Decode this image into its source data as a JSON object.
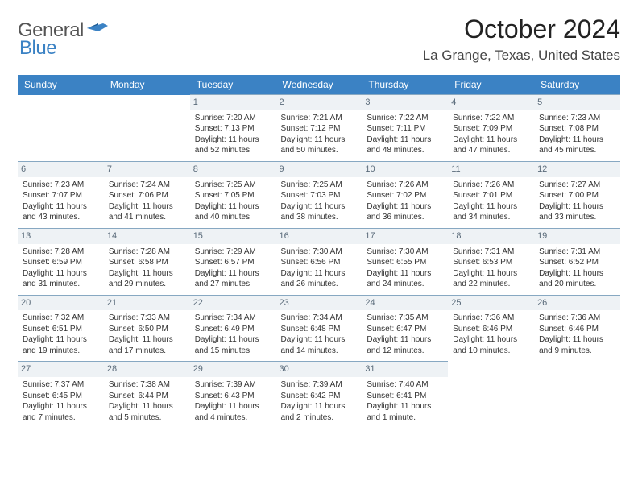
{
  "logo": {
    "general": "General",
    "blue": "Blue"
  },
  "title": "October 2024",
  "location": "La Grange, Texas, United States",
  "colors": {
    "header_bg": "#3b82c4",
    "row_border": "#87a8c2",
    "daynum_bg": "#eef2f5",
    "daynum_fg": "#5a6b7a",
    "logo_blue": "#3b82c4",
    "logo_gray": "#555555",
    "page_bg": "#ffffff"
  },
  "typography": {
    "title_fontsize": 32,
    "location_fontsize": 17,
    "dayheader_fontsize": 12,
    "cell_fontsize": 10,
    "logo_fontsize": 24
  },
  "day_headers": [
    "Sunday",
    "Monday",
    "Tuesday",
    "Wednesday",
    "Thursday",
    "Friday",
    "Saturday"
  ],
  "weeks": [
    [
      null,
      null,
      {
        "n": "1",
        "sr": "Sunrise: 7:20 AM",
        "ss": "Sunset: 7:13 PM",
        "d1": "Daylight: 11 hours",
        "d2": "and 52 minutes."
      },
      {
        "n": "2",
        "sr": "Sunrise: 7:21 AM",
        "ss": "Sunset: 7:12 PM",
        "d1": "Daylight: 11 hours",
        "d2": "and 50 minutes."
      },
      {
        "n": "3",
        "sr": "Sunrise: 7:22 AM",
        "ss": "Sunset: 7:11 PM",
        "d1": "Daylight: 11 hours",
        "d2": "and 48 minutes."
      },
      {
        "n": "4",
        "sr": "Sunrise: 7:22 AM",
        "ss": "Sunset: 7:09 PM",
        "d1": "Daylight: 11 hours",
        "d2": "and 47 minutes."
      },
      {
        "n": "5",
        "sr": "Sunrise: 7:23 AM",
        "ss": "Sunset: 7:08 PM",
        "d1": "Daylight: 11 hours",
        "d2": "and 45 minutes."
      }
    ],
    [
      {
        "n": "6",
        "sr": "Sunrise: 7:23 AM",
        "ss": "Sunset: 7:07 PM",
        "d1": "Daylight: 11 hours",
        "d2": "and 43 minutes."
      },
      {
        "n": "7",
        "sr": "Sunrise: 7:24 AM",
        "ss": "Sunset: 7:06 PM",
        "d1": "Daylight: 11 hours",
        "d2": "and 41 minutes."
      },
      {
        "n": "8",
        "sr": "Sunrise: 7:25 AM",
        "ss": "Sunset: 7:05 PM",
        "d1": "Daylight: 11 hours",
        "d2": "and 40 minutes."
      },
      {
        "n": "9",
        "sr": "Sunrise: 7:25 AM",
        "ss": "Sunset: 7:03 PM",
        "d1": "Daylight: 11 hours",
        "d2": "and 38 minutes."
      },
      {
        "n": "10",
        "sr": "Sunrise: 7:26 AM",
        "ss": "Sunset: 7:02 PM",
        "d1": "Daylight: 11 hours",
        "d2": "and 36 minutes."
      },
      {
        "n": "11",
        "sr": "Sunrise: 7:26 AM",
        "ss": "Sunset: 7:01 PM",
        "d1": "Daylight: 11 hours",
        "d2": "and 34 minutes."
      },
      {
        "n": "12",
        "sr": "Sunrise: 7:27 AM",
        "ss": "Sunset: 7:00 PM",
        "d1": "Daylight: 11 hours",
        "d2": "and 33 minutes."
      }
    ],
    [
      {
        "n": "13",
        "sr": "Sunrise: 7:28 AM",
        "ss": "Sunset: 6:59 PM",
        "d1": "Daylight: 11 hours",
        "d2": "and 31 minutes."
      },
      {
        "n": "14",
        "sr": "Sunrise: 7:28 AM",
        "ss": "Sunset: 6:58 PM",
        "d1": "Daylight: 11 hours",
        "d2": "and 29 minutes."
      },
      {
        "n": "15",
        "sr": "Sunrise: 7:29 AM",
        "ss": "Sunset: 6:57 PM",
        "d1": "Daylight: 11 hours",
        "d2": "and 27 minutes."
      },
      {
        "n": "16",
        "sr": "Sunrise: 7:30 AM",
        "ss": "Sunset: 6:56 PM",
        "d1": "Daylight: 11 hours",
        "d2": "and 26 minutes."
      },
      {
        "n": "17",
        "sr": "Sunrise: 7:30 AM",
        "ss": "Sunset: 6:55 PM",
        "d1": "Daylight: 11 hours",
        "d2": "and 24 minutes."
      },
      {
        "n": "18",
        "sr": "Sunrise: 7:31 AM",
        "ss": "Sunset: 6:53 PM",
        "d1": "Daylight: 11 hours",
        "d2": "and 22 minutes."
      },
      {
        "n": "19",
        "sr": "Sunrise: 7:31 AM",
        "ss": "Sunset: 6:52 PM",
        "d1": "Daylight: 11 hours",
        "d2": "and 20 minutes."
      }
    ],
    [
      {
        "n": "20",
        "sr": "Sunrise: 7:32 AM",
        "ss": "Sunset: 6:51 PM",
        "d1": "Daylight: 11 hours",
        "d2": "and 19 minutes."
      },
      {
        "n": "21",
        "sr": "Sunrise: 7:33 AM",
        "ss": "Sunset: 6:50 PM",
        "d1": "Daylight: 11 hours",
        "d2": "and 17 minutes."
      },
      {
        "n": "22",
        "sr": "Sunrise: 7:34 AM",
        "ss": "Sunset: 6:49 PM",
        "d1": "Daylight: 11 hours",
        "d2": "and 15 minutes."
      },
      {
        "n": "23",
        "sr": "Sunrise: 7:34 AM",
        "ss": "Sunset: 6:48 PM",
        "d1": "Daylight: 11 hours",
        "d2": "and 14 minutes."
      },
      {
        "n": "24",
        "sr": "Sunrise: 7:35 AM",
        "ss": "Sunset: 6:47 PM",
        "d1": "Daylight: 11 hours",
        "d2": "and 12 minutes."
      },
      {
        "n": "25",
        "sr": "Sunrise: 7:36 AM",
        "ss": "Sunset: 6:46 PM",
        "d1": "Daylight: 11 hours",
        "d2": "and 10 minutes."
      },
      {
        "n": "26",
        "sr": "Sunrise: 7:36 AM",
        "ss": "Sunset: 6:46 PM",
        "d1": "Daylight: 11 hours",
        "d2": "and 9 minutes."
      }
    ],
    [
      {
        "n": "27",
        "sr": "Sunrise: 7:37 AM",
        "ss": "Sunset: 6:45 PM",
        "d1": "Daylight: 11 hours",
        "d2": "and 7 minutes."
      },
      {
        "n": "28",
        "sr": "Sunrise: 7:38 AM",
        "ss": "Sunset: 6:44 PM",
        "d1": "Daylight: 11 hours",
        "d2": "and 5 minutes."
      },
      {
        "n": "29",
        "sr": "Sunrise: 7:39 AM",
        "ss": "Sunset: 6:43 PM",
        "d1": "Daylight: 11 hours",
        "d2": "and 4 minutes."
      },
      {
        "n": "30",
        "sr": "Sunrise: 7:39 AM",
        "ss": "Sunset: 6:42 PM",
        "d1": "Daylight: 11 hours",
        "d2": "and 2 minutes."
      },
      {
        "n": "31",
        "sr": "Sunrise: 7:40 AM",
        "ss": "Sunset: 6:41 PM",
        "d1": "Daylight: 11 hours",
        "d2": "and 1 minute."
      },
      null,
      null
    ]
  ]
}
